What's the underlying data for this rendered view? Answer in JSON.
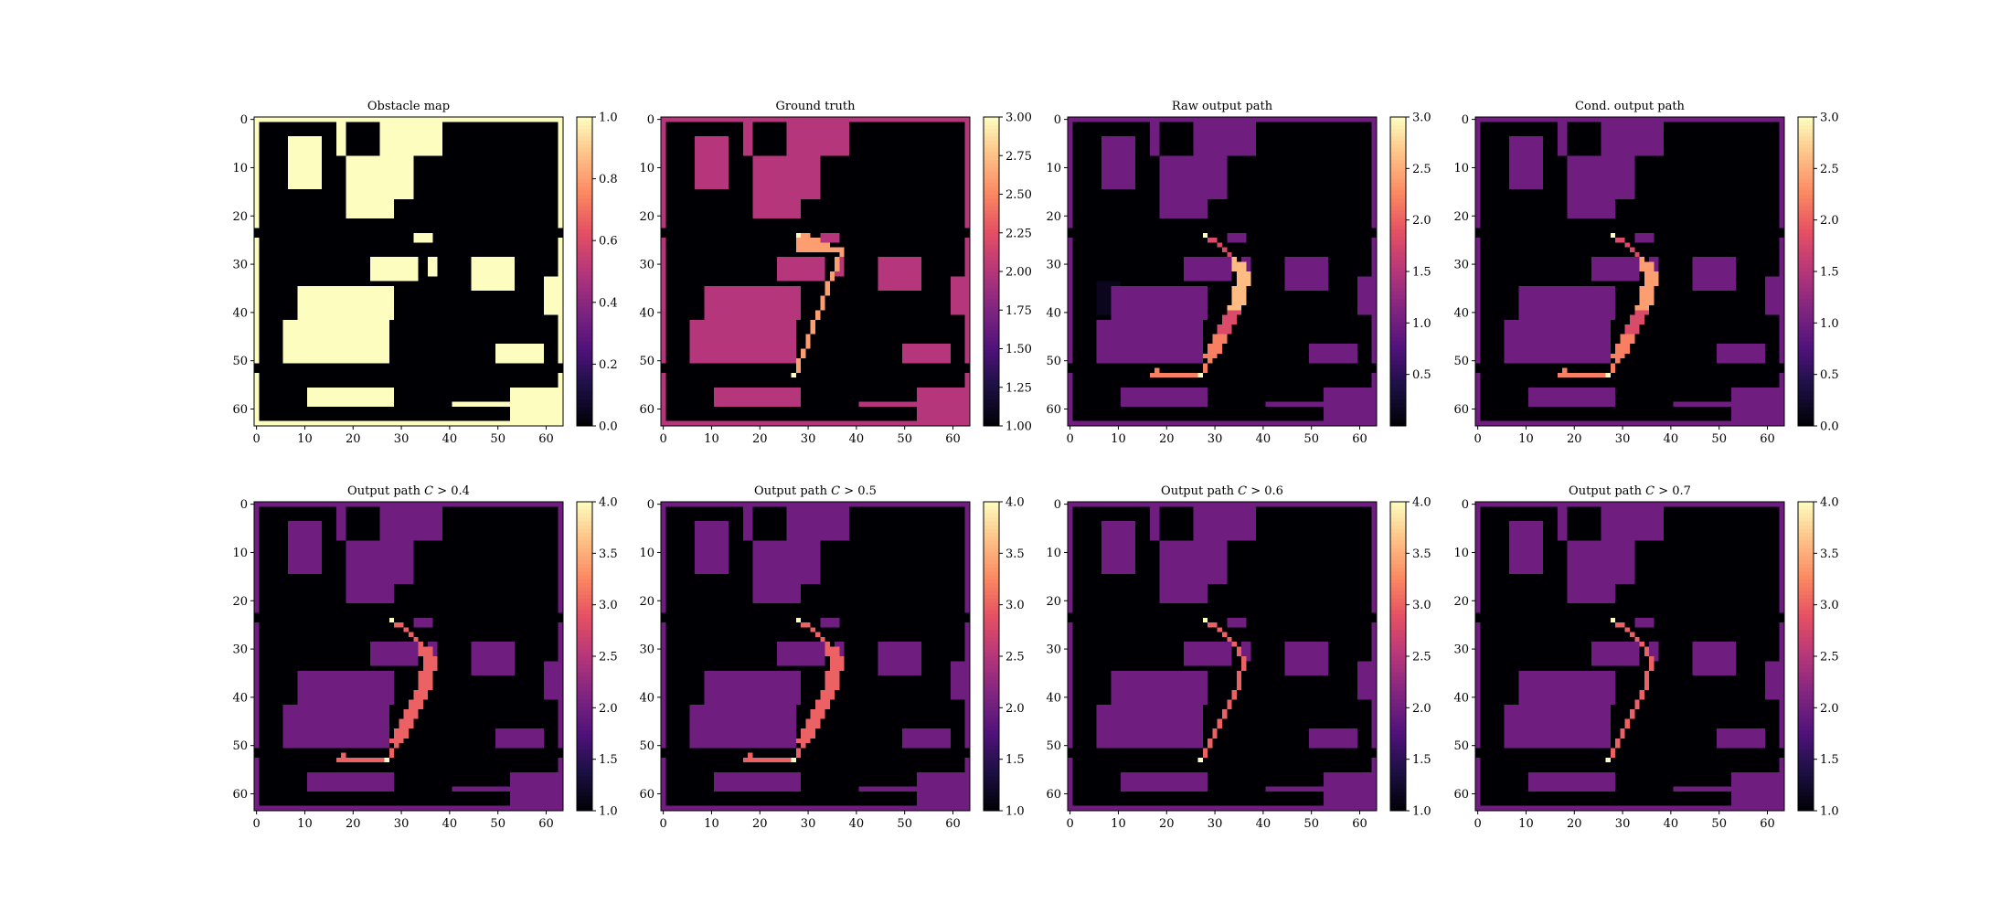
{
  "figure": {
    "background": "#ffffff"
  },
  "chart_data": [
    {
      "type": "heatmap",
      "title": "Obstacle map",
      "grid": "64x64",
      "colormap": "magma",
      "value_range": [
        0.0,
        1.0
      ],
      "x_ticks": [
        "0",
        "10",
        "20",
        "30",
        "40",
        "50",
        "60"
      ],
      "y_ticks": [
        "0",
        "10",
        "20",
        "30",
        "40",
        "50",
        "60"
      ],
      "colorbar_ticks": [
        "0.0",
        "0.2",
        "0.4",
        "0.6",
        "0.8",
        "1.0"
      ],
      "cell_values": {
        "free": 0,
        "obstacle": 1
      }
    },
    {
      "type": "heatmap",
      "title": "Ground truth",
      "grid": "64x64",
      "colormap": "magma",
      "value_range": [
        1.0,
        3.0
      ],
      "x_ticks": [
        "0",
        "10",
        "20",
        "30",
        "40",
        "50",
        "60"
      ],
      "y_ticks": [
        "0",
        "10",
        "20",
        "30",
        "40",
        "50",
        "60"
      ],
      "colorbar_ticks": [
        "1.00",
        "1.25",
        "1.50",
        "1.75",
        "2.00",
        "2.25",
        "2.50",
        "2.75",
        "3.00"
      ],
      "cell_values": {
        "free": 1,
        "obstacle": 2,
        "path": 3,
        "start": [
          28,
          24
        ],
        "goal": [
          27,
          53
        ]
      }
    },
    {
      "type": "heatmap",
      "title": "Raw output path",
      "grid": "64x64",
      "colormap": "magma",
      "value_range": [
        0.0,
        3.0
      ],
      "x_ticks": [
        "0",
        "10",
        "20",
        "30",
        "40",
        "50",
        "60"
      ],
      "y_ticks": [
        "0",
        "10",
        "20",
        "30",
        "40",
        "50",
        "60"
      ],
      "colorbar_ticks": [
        "0.5",
        "1.0",
        "1.5",
        "2.0",
        "2.5",
        "3.0"
      ]
    },
    {
      "type": "heatmap",
      "title": "Cond. output path",
      "grid": "64x64",
      "colormap": "magma",
      "value_range": [
        0.0,
        3.0
      ],
      "x_ticks": [
        "0",
        "10",
        "20",
        "30",
        "40",
        "50",
        "60"
      ],
      "y_ticks": [
        "0",
        "10",
        "20",
        "30",
        "40",
        "50",
        "60"
      ],
      "colorbar_ticks": [
        "0.0",
        "0.5",
        "1.0",
        "1.5",
        "2.0",
        "2.5",
        "3.0"
      ]
    },
    {
      "type": "heatmap",
      "title_prefix": "Output path ",
      "title_var": "C",
      "title_suffix": " > 0.4",
      "threshold": 0.4,
      "grid": "64x64",
      "colormap": "magma",
      "value_range": [
        1.0,
        4.0
      ],
      "x_ticks": [
        "0",
        "10",
        "20",
        "30",
        "40",
        "50",
        "60"
      ],
      "y_ticks": [
        "0",
        "10",
        "20",
        "30",
        "40",
        "50",
        "60"
      ],
      "colorbar_ticks": [
        "1.0",
        "1.5",
        "2.0",
        "2.5",
        "3.0",
        "3.5",
        "4.0"
      ]
    },
    {
      "type": "heatmap",
      "title_prefix": "Output path ",
      "title_var": "C",
      "title_suffix": " > 0.5",
      "threshold": 0.5,
      "grid": "64x64",
      "colormap": "magma",
      "value_range": [
        1.0,
        4.0
      ],
      "x_ticks": [
        "0",
        "10",
        "20",
        "30",
        "40",
        "50",
        "60"
      ],
      "y_ticks": [
        "0",
        "10",
        "20",
        "30",
        "40",
        "50",
        "60"
      ],
      "colorbar_ticks": [
        "1.0",
        "1.5",
        "2.0",
        "2.5",
        "3.0",
        "3.5",
        "4.0"
      ]
    },
    {
      "type": "heatmap",
      "title_prefix": "Output path ",
      "title_var": "C",
      "title_suffix": " > 0.6",
      "threshold": 0.6,
      "grid": "64x64",
      "colormap": "magma",
      "value_range": [
        1.0,
        4.0
      ],
      "x_ticks": [
        "0",
        "10",
        "20",
        "30",
        "40",
        "50",
        "60"
      ],
      "y_ticks": [
        "0",
        "10",
        "20",
        "30",
        "40",
        "50",
        "60"
      ],
      "colorbar_ticks": [
        "1.0",
        "1.5",
        "2.0",
        "2.5",
        "3.0",
        "3.5",
        "4.0"
      ]
    },
    {
      "type": "heatmap",
      "title_prefix": "Output path ",
      "title_var": "C",
      "title_suffix": " > 0.7",
      "threshold": 0.7,
      "grid": "64x64",
      "colormap": "magma",
      "value_range": [
        1.0,
        4.0
      ],
      "x_ticks": [
        "0",
        "10",
        "20",
        "30",
        "40",
        "50",
        "60"
      ],
      "y_ticks": [
        "0",
        "10",
        "20",
        "30",
        "40",
        "50",
        "60"
      ],
      "colorbar_ticks": [
        "1.0",
        "1.5",
        "2.0",
        "2.5",
        "3.0",
        "3.5",
        "4.0"
      ]
    }
  ]
}
